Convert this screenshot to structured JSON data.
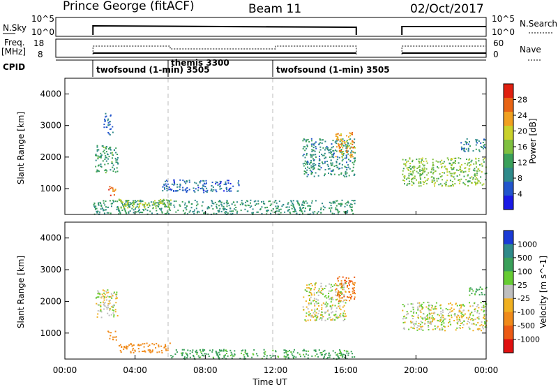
{
  "header": {
    "station": "Prince George (fitACF)",
    "beam": "Beam 11",
    "date": "02/Oct/2017"
  },
  "status_panels": {
    "nsky_label": "N.Sky",
    "nsky_ticks": [
      "10^5",
      "10^0"
    ],
    "nsearch_label": "N.Search",
    "nsearch_ticks": [
      "10^5",
      "10^0"
    ],
    "freq_label_1": "Freq.",
    "freq_label_2": "[MHz]",
    "freq_ticks": [
      "18",
      "8"
    ],
    "nave_label": "Nave",
    "nave_ticks": [
      "60",
      "0"
    ],
    "cpid_label": "CPID",
    "cpid_segments": [
      {
        "start_h": 1.6,
        "label": "twofsound (1-min) 3505"
      },
      {
        "start_h": 6.0,
        "label": "themis 3300"
      },
      {
        "start_h": 12.0,
        "label": "twofsound (1-min) 3505"
      }
    ],
    "data_gap_hours": [
      16.6,
      19.2
    ]
  },
  "time_axis": {
    "xlabel": "Time UT",
    "tick_labels": [
      "00:00",
      "04:00",
      "08:00",
      "12:00",
      "16:00",
      "20:00",
      "00:00"
    ],
    "range_hours": [
      0,
      24
    ]
  },
  "chart_data": [
    {
      "type": "heatmap",
      "panel": "power",
      "ylabel": "Slant Range [km]",
      "y_ticks": [
        "1000",
        "2000",
        "3000",
        "4000"
      ],
      "ylim": [
        180,
        4500
      ],
      "colorbar_label": "Power [dB]",
      "colorbar_ticks": [
        "4",
        "8",
        "12",
        "16",
        "20",
        "24",
        "28"
      ],
      "colorbar_colors": [
        "#1a1ae6",
        "#2255cc",
        "#2f8a8a",
        "#3aa05a",
        "#7fc040",
        "#c9d12a",
        "#f0a020",
        "#e86414",
        "#e02010"
      ],
      "echo_regions": [
        {
          "t": [
            1.7,
            3.0
          ],
          "r": [
            1500,
            2400
          ],
          "level": 11
        },
        {
          "t": [
            2.4,
            2.9
          ],
          "r": [
            800,
            1100
          ],
          "level": 28
        },
        {
          "t": [
            2.2,
            2.7
          ],
          "r": [
            2700,
            3400
          ],
          "level": 6
        },
        {
          "t": [
            1.6,
            16.5
          ],
          "r": [
            200,
            650
          ],
          "level": 10
        },
        {
          "t": [
            3.0,
            6.0
          ],
          "r": [
            400,
            700
          ],
          "level": 18
        },
        {
          "t": [
            5.5,
            10.0
          ],
          "r": [
            900,
            1300
          ],
          "level": 5
        },
        {
          "t": [
            13.5,
            16.5
          ],
          "r": [
            1400,
            2600
          ],
          "level": 9
        },
        {
          "t": [
            15.4,
            16.5
          ],
          "r": [
            2000,
            2800
          ],
          "level": 24
        },
        {
          "t": [
            19.2,
            24.0
          ],
          "r": [
            1100,
            2000
          ],
          "level": 16
        },
        {
          "t": [
            22.5,
            24.0
          ],
          "r": [
            2200,
            2600
          ],
          "level": 8
        }
      ]
    },
    {
      "type": "heatmap",
      "panel": "velocity",
      "ylabel": "Slant Range [km]",
      "y_ticks": [
        "1000",
        "2000",
        "3000",
        "4000"
      ],
      "ylim": [
        180,
        4500
      ],
      "colorbar_label": "Velocity [m s^-1]",
      "colorbar_ticks": [
        "1000",
        "500",
        "100",
        "25",
        "-25",
        "-100",
        "-500",
        "-1000"
      ],
      "colorbar_colors": [
        "#1a3ad6",
        "#2f8a8a",
        "#3aa05a",
        "#66cc33",
        "#bfbfbf",
        "#f0b020",
        "#f08a1a",
        "#ec5a14",
        "#e01010"
      ],
      "echo_regions": [
        {
          "t": [
            1.7,
            3.0
          ],
          "r": [
            1500,
            2400
          ],
          "velocity": 0
        },
        {
          "t": [
            2.4,
            2.9
          ],
          "r": [
            800,
            1100
          ],
          "velocity": -400
        },
        {
          "t": [
            3.0,
            6.0
          ],
          "r": [
            400,
            700
          ],
          "velocity": -300
        },
        {
          "t": [
            6.0,
            16.5
          ],
          "r": [
            200,
            500
          ],
          "velocity": 150
        },
        {
          "t": [
            13.5,
            16.0
          ],
          "r": [
            1400,
            2600
          ],
          "velocity": 0
        },
        {
          "t": [
            15.4,
            16.5
          ],
          "r": [
            2000,
            2800
          ],
          "velocity": -500
        },
        {
          "t": [
            19.2,
            24.0
          ],
          "r": [
            1100,
            2000
          ],
          "velocity": 0
        },
        {
          "t": [
            23.0,
            24.0
          ],
          "r": [
            2200,
            2500
          ],
          "velocity": 120
        }
      ]
    }
  ]
}
